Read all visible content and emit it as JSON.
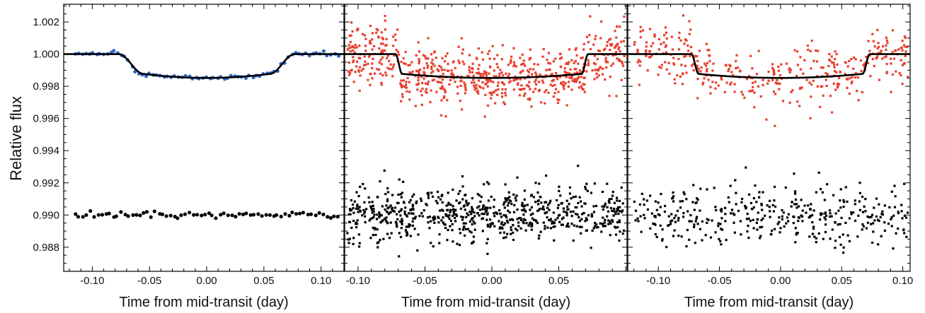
{
  "figure": {
    "ylabel": "Relative flux",
    "colors": {
      "blue": "#2f66c4",
      "red": "#e8402f",
      "black": "#000000",
      "model": "#000000"
    }
  },
  "chart_data": [
    {
      "type": "scatter",
      "xlabel": "Time from mid-transit (day)",
      "ylabel": "Relative flux",
      "xlim": [
        -0.125,
        0.12
      ],
      "ylim": [
        0.9865,
        1.0031
      ],
      "xticks": [
        -0.1,
        -0.05,
        0.0,
        0.05,
        0.1
      ],
      "xtick_labels": [
        "-0.10",
        "-0.05",
        "0.00",
        "0.05",
        "0.10"
      ],
      "yticks": [
        0.988,
        0.99,
        0.992,
        0.994,
        0.996,
        0.998,
        1.0,
        1.002
      ],
      "ytick_labels": [
        "0.988",
        "0.990",
        "0.992",
        "0.994",
        "0.996",
        "0.998",
        "1.000",
        "1.002"
      ],
      "transit": {
        "depth": 0.00148,
        "t14": 0.077,
        "t12": 0.022,
        "limb_darkening": 0.35
      },
      "series": [
        {
          "role": "light-curve",
          "color": "blue",
          "marker": "circle",
          "n_points": 75,
          "x_range": [
            -0.115,
            0.115
          ],
          "offset": 0.0,
          "scatter": 7e-05
        },
        {
          "role": "residuals",
          "color": "black",
          "marker": "circle",
          "n_points": 70,
          "x_range": [
            -0.115,
            0.115
          ],
          "offset": 0.99,
          "scatter": 9e-05
        }
      ]
    },
    {
      "type": "scatter",
      "xlabel": "Time from mid-transit (day)",
      "xlim": [
        -0.11,
        0.101
      ],
      "ylim": [
        0.9865,
        1.0031
      ],
      "xticks": [
        -0.1,
        -0.05,
        0.0,
        0.05
      ],
      "xtick_labels": [
        "-0.10",
        "-0.05",
        "0.00",
        "0.05"
      ],
      "yticks": [
        0.988,
        0.99,
        0.992,
        0.994,
        0.996,
        0.998,
        1.0,
        1.002
      ],
      "transit": {
        "depth": 0.00148,
        "t14": 0.072,
        "t12": 0.005,
        "limb_darkening": 0.35
      },
      "series": [
        {
          "role": "light-curve",
          "color": "red",
          "marker": "square",
          "n_points": 700,
          "x_range": [
            -0.108,
            0.099
          ],
          "offset": 0.0,
          "scatter": 0.00085
        },
        {
          "role": "residuals",
          "color": "black",
          "marker": "square",
          "n_points": 700,
          "x_range": [
            -0.108,
            0.099
          ],
          "offset": 0.99,
          "scatter": 0.00085
        }
      ]
    },
    {
      "type": "scatter",
      "xlabel": "Time from mid-transit (day)",
      "xlim": [
        -0.125,
        0.106
      ],
      "ylim": [
        0.9865,
        1.0031
      ],
      "xticks": [
        -0.1,
        -0.05,
        0.0,
        0.05,
        0.1
      ],
      "xtick_labels": [
        "-0.10",
        "-0.05",
        "0.00",
        "0.05",
        "0.10"
      ],
      "yticks": [
        0.988,
        0.99,
        0.992,
        0.994,
        0.996,
        0.998,
        1.0,
        1.002
      ],
      "transit": {
        "depth": 0.00148,
        "t14": 0.073,
        "t12": 0.006,
        "limb_darkening": 0.35
      },
      "series": [
        {
          "role": "light-curve",
          "color": "red",
          "marker": "square",
          "n_points": 380,
          "x_range": [
            -0.12,
            0.104
          ],
          "offset": 0.0,
          "scatter": 0.00085
        },
        {
          "role": "residuals",
          "color": "black",
          "marker": "square",
          "n_points": 380,
          "x_range": [
            -0.12,
            0.104
          ],
          "offset": 0.99,
          "scatter": 0.0009
        }
      ]
    }
  ]
}
